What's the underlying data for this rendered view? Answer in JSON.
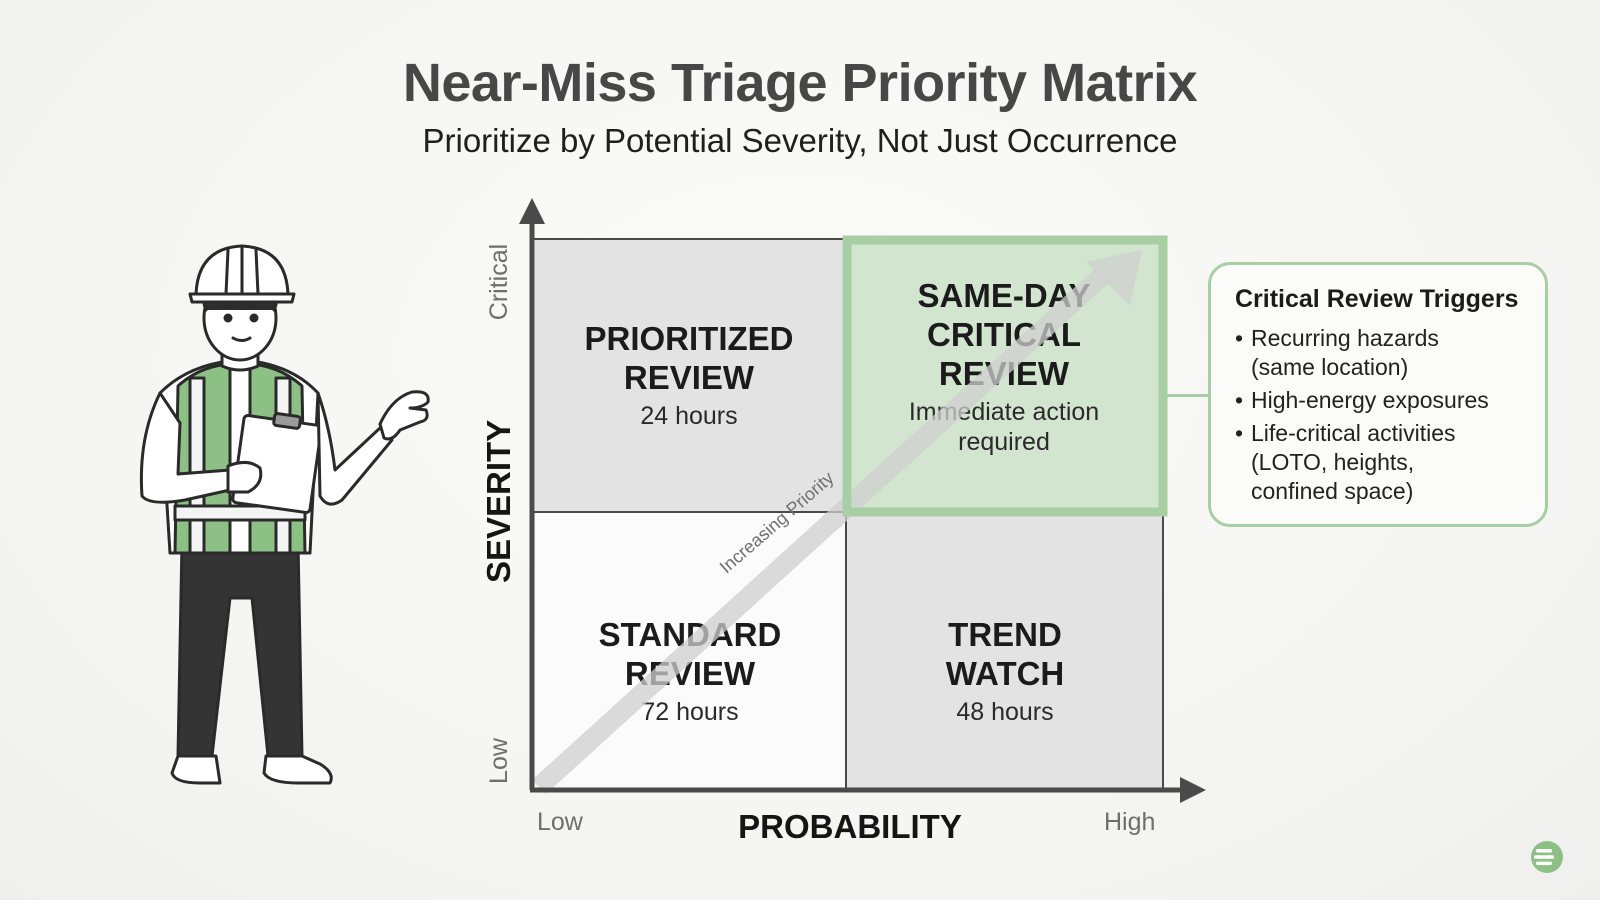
{
  "title": "Near-Miss Triage Priority Matrix",
  "subtitle": "Prioritize by Potential Severity, Not Just Occurrence",
  "axes": {
    "y_title": "SEVERITY",
    "y_high": "Critical",
    "y_low": "Low",
    "x_title": "PROBABILITY",
    "x_low": "Low",
    "x_high": "High"
  },
  "diagonal_label": "Increasing Priority",
  "quadrants": {
    "top_left": {
      "title": "PRIORITIZED\nREVIEW",
      "detail": "24 hours"
    },
    "top_right": {
      "title": "SAME-DAY\nCRITICAL\nREVIEW",
      "detail": "Immediate action\nrequired"
    },
    "bottom_left": {
      "title": "STANDARD\nREVIEW",
      "detail": "72 hours"
    },
    "bottom_right": {
      "title": "TREND\nWATCH",
      "detail": "48 hours"
    }
  },
  "triggers": {
    "title": "Critical Review Triggers",
    "items": [
      "Recurring hazards\n(same location)",
      "High-energy exposures",
      "Life-critical activities\n(LOTO, heights,\nconfined space)"
    ]
  },
  "colors": {
    "accent_green": "#a7cfa3",
    "highlight_fill": "#d2e6cf",
    "quadrant_gray": "#e3e3e3",
    "axis": "#4a4a4a"
  },
  "icons": {
    "worker": "safety-worker-illustration-icon",
    "logo": "brand-logo-icon"
  }
}
